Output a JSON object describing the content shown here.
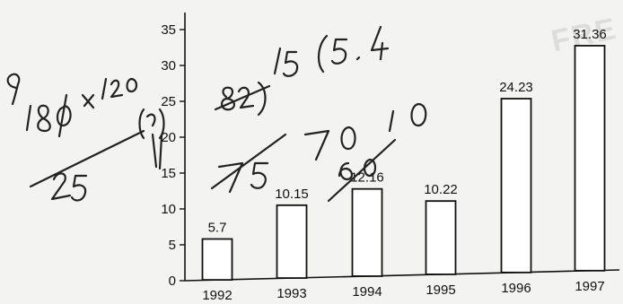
{
  "chart_data": {
    "type": "bar",
    "categories": [
      "1992",
      "1993",
      "1994",
      "1995",
      "1996",
      "1997"
    ],
    "values": [
      5.7,
      10.15,
      12.16,
      10.22,
      24.23,
      31.36
    ],
    "data_labels": [
      "5.7",
      "10.15",
      "12.16",
      "10.22",
      "24.23",
      "31.36"
    ],
    "title": "",
    "xlabel": "",
    "ylabel": "",
    "ylim": [
      0,
      35
    ],
    "yticks": [
      "0",
      "5",
      "10",
      "15",
      "20",
      "25",
      "30",
      "35"
    ],
    "grid": false,
    "legend": "none"
  },
  "watermark": "FRE",
  "handwriting": {
    "description": "pen scribbles",
    "tokens": [
      "9",
      "180",
      "x",
      "120",
      "25",
      "82",
      "15",
      "15.4",
      "75",
      "70",
      "60",
      "10"
    ]
  }
}
